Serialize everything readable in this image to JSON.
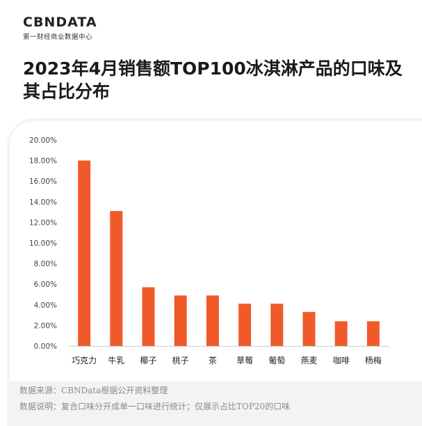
{
  "logo": {
    "brand": "CBNDATA",
    "tagline": "第一财经商业数据中心"
  },
  "title": "2023年4月销售额TOP100冰淇淋产品的口味及其占比分布",
  "notes": {
    "source": "数据来源：CBNData根据公开资料整理",
    "explain": "数据说明：复合口味分开成单一口味进行统计；仅展示占比TOP20的口味"
  },
  "colors": {
    "bar": "#f05a2a",
    "card": "#f3f3f3"
  },
  "chart_data": {
    "type": "bar",
    "title": "2023年4月销售额TOP100冰淇淋产品的口味及其占比分布",
    "categories": [
      "巧克力",
      "牛乳",
      "椰子",
      "桃子",
      "茶",
      "草莓",
      "葡萄",
      "燕麦",
      "咖啡",
      "杨梅"
    ],
    "values": [
      18.0,
      13.1,
      5.7,
      4.9,
      4.9,
      4.1,
      4.1,
      3.3,
      2.4,
      2.4
    ],
    "ylim": [
      0,
      20
    ],
    "yticks": [
      "0.00%",
      "2.00%",
      "4.00%",
      "6.00%",
      "8.00%",
      "10.00%",
      "12.00%",
      "14.00%",
      "16.00%",
      "18.00%",
      "20.00%"
    ],
    "xlabel": "",
    "ylabel": "",
    "grid": false
  }
}
